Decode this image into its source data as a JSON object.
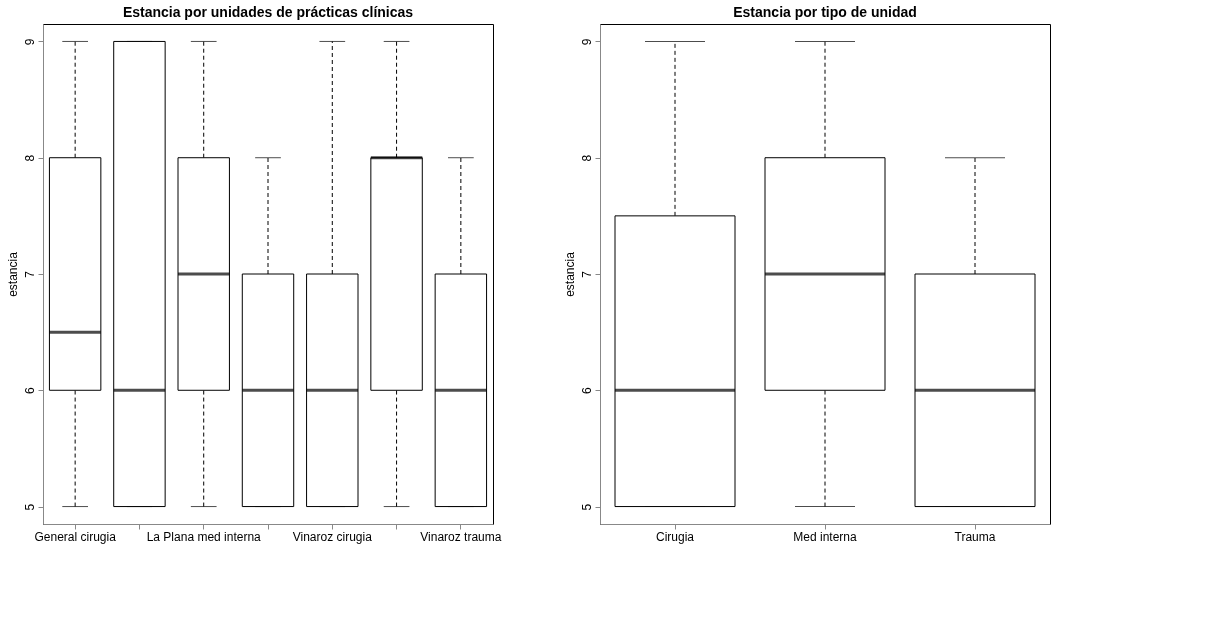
{
  "chart_data": [
    {
      "type": "box",
      "title": "Estancia por unidades de prácticas clínicas",
      "ylabel": "estancia",
      "categories": [
        "General cirugia",
        null,
        "La Plana med interna",
        null,
        "Vinaroz cirugia",
        null,
        "Vinaroz trauma"
      ],
      "boxes": [
        {
          "low": 5,
          "q1": 6,
          "median": 6.5,
          "q3": 8,
          "high": 9
        },
        {
          "low": 5,
          "q1": 5,
          "median": 6,
          "q3": 9,
          "high": 9
        },
        {
          "low": 5,
          "q1": 6,
          "median": 7,
          "q3": 8,
          "high": 9
        },
        {
          "low": 5,
          "q1": 5,
          "median": 6,
          "q3": 7,
          "high": 8
        },
        {
          "low": 5,
          "q1": 5,
          "median": 6,
          "q3": 7,
          "high": 9
        },
        {
          "low": 5,
          "q1": 6,
          "median": 8,
          "q3": 8,
          "high": 9
        },
        {
          "low": 5,
          "q1": 5,
          "median": 6,
          "q3": 7,
          "high": 8
        }
      ],
      "ylim": [
        4.85,
        9.15
      ],
      "yticks": [
        5,
        6,
        7,
        8,
        9
      ],
      "grid": false
    },
    {
      "type": "box",
      "title": "Estancia por tipo de unidad",
      "ylabel": "estancia",
      "categories": [
        "Cirugia",
        "Med interna",
        "Trauma"
      ],
      "boxes": [
        {
          "low": 5,
          "q1": 5,
          "median": 6,
          "q3": 7.5,
          "high": 9
        },
        {
          "low": 5,
          "q1": 6,
          "median": 7,
          "q3": 8,
          "high": 9
        },
        {
          "low": 5,
          "q1": 5,
          "median": 6,
          "q3": 7,
          "high": 8
        }
      ],
      "ylim": [
        4.85,
        9.15
      ],
      "yticks": [
        5,
        6,
        7,
        8,
        9
      ],
      "grid": false
    }
  ]
}
